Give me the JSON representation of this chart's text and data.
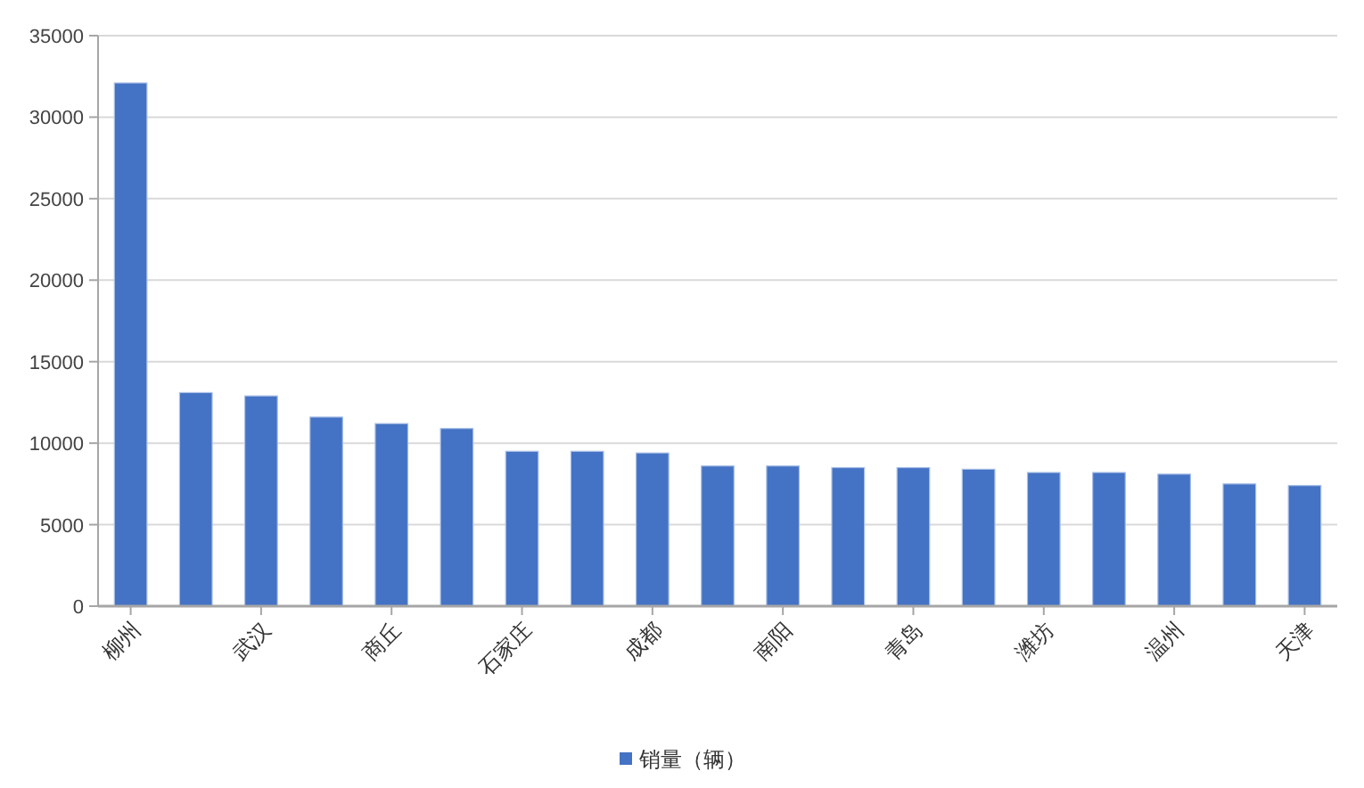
{
  "chart_data": {
    "type": "bar",
    "categories": [
      "柳州",
      null,
      "武汉",
      null,
      "商丘",
      null,
      "石家庄",
      null,
      "成都",
      null,
      "南阳",
      null,
      "青岛",
      null,
      "潍坊",
      null,
      "温州",
      null,
      "天津"
    ],
    "series": [
      {
        "name": "销量（辆）",
        "color": "#4472c4",
        "values": [
          32100,
          13100,
          12900,
          11600,
          11200,
          10900,
          9500,
          9500,
          9400,
          8600,
          8600,
          8500,
          8500,
          8400,
          8200,
          8200,
          8100,
          7500,
          7400
        ]
      }
    ],
    "ylim": [
      0,
      35000
    ],
    "yticks": [
      0,
      5000,
      10000,
      15000,
      20000,
      25000,
      30000,
      35000
    ],
    "grid": "y",
    "legend": "bottom"
  }
}
